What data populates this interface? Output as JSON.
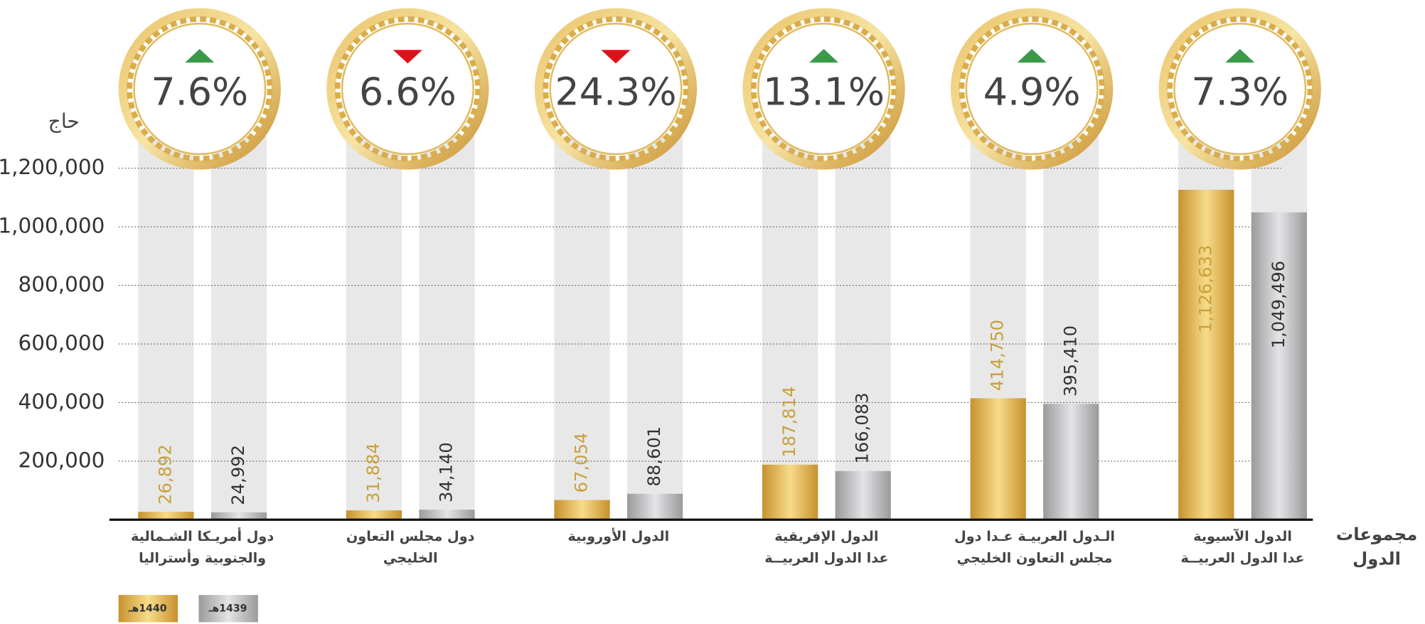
{
  "chart_data": {
    "type": "bar",
    "ylabel": "حاج",
    "xlabel": [
      "مجموعات",
      "الدول"
    ],
    "categories": [
      [
        "دول أمريـكا الشـمالية",
        "والجنوبية وأستراليا"
      ],
      [
        "دول مجلس التعاون",
        "الخليجي"
      ],
      [
        "الدول الأوروبية"
      ],
      [
        "الدول الإفريقية",
        "عدا الدول العربيــة"
      ],
      [
        "الـدول  العربيـة  عـدا  دول",
        "مجلس التعاون الخليجي"
      ],
      [
        "الدول الآسيوية",
        "عدا الدول العربيــة"
      ]
    ],
    "series": [
      {
        "name": "1440هـ",
        "color": "#d4a73a",
        "label_color": "#c9a13b",
        "values": [
          26892,
          31884,
          67054,
          187814,
          414750,
          1126633
        ],
        "value_labels": [
          "26,892",
          "31,884",
          "67,054",
          "187,814",
          "414,750",
          "1,126,633"
        ]
      },
      {
        "name": "1439هـ",
        "color": "#a9a9a9",
        "label_color": "#333333",
        "values": [
          24992,
          34140,
          88601,
          166083,
          395410,
          1049496
        ],
        "value_labels": [
          "24,992",
          "34,140",
          "88,601",
          "166,083",
          "395,410",
          "1,049,496"
        ]
      }
    ],
    "change": {
      "values": [
        7.6,
        6.6,
        24.3,
        13.1,
        4.9,
        7.3
      ],
      "value_labels": [
        "7.6%",
        "6.6%",
        "24.3%",
        "13.1%",
        "4.9%",
        "7.3%"
      ],
      "up_color": "#3a9a4a",
      "down_color": "#e0101a"
    },
    "ylim": [
      0,
      1310000
    ],
    "yticks": [
      {
        "value": 200000,
        "label": "200,000"
      },
      {
        "value": 400000,
        "label": "400,000"
      },
      {
        "value": 600000,
        "label": "600,000"
      },
      {
        "value": 800000,
        "label": "800,000"
      },
      {
        "value": 1000000,
        "label": "1,000,000"
      },
      {
        "value": 1200000,
        "label": "1,200,000"
      }
    ],
    "grid": true
  }
}
